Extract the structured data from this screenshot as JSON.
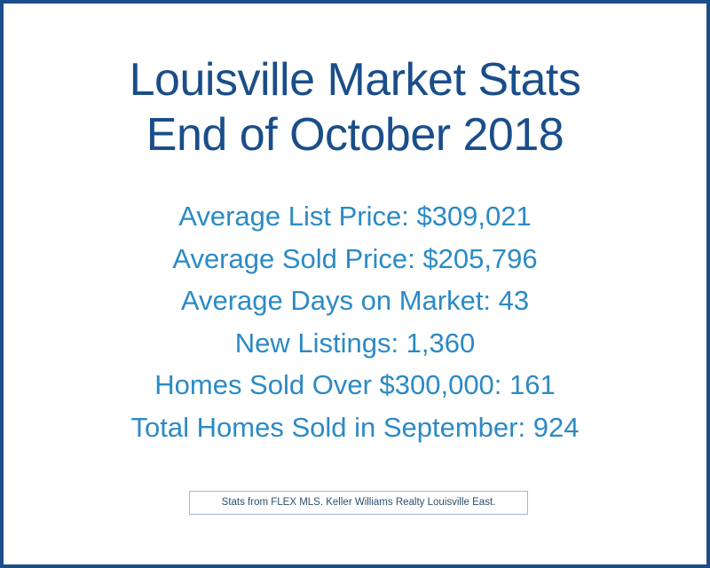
{
  "title": {
    "line1": "Louisville Market Stats",
    "line2": "End of October 2018"
  },
  "stats": [
    "Average List Price: $309,021",
    "Average Sold Price: $205,796",
    "Average Days on Market: 43",
    "New Listings: 1,360",
    "Homes Sold Over $300,000: 161",
    "Total Homes Sold in September: 924"
  ],
  "source_note": "Stats from FLEX MLS. Keller Williams Realty Louisville East.",
  "colors": {
    "title": "#1a4e8a",
    "stats": "#2b8ac5",
    "border": "#1a4e8a"
  }
}
